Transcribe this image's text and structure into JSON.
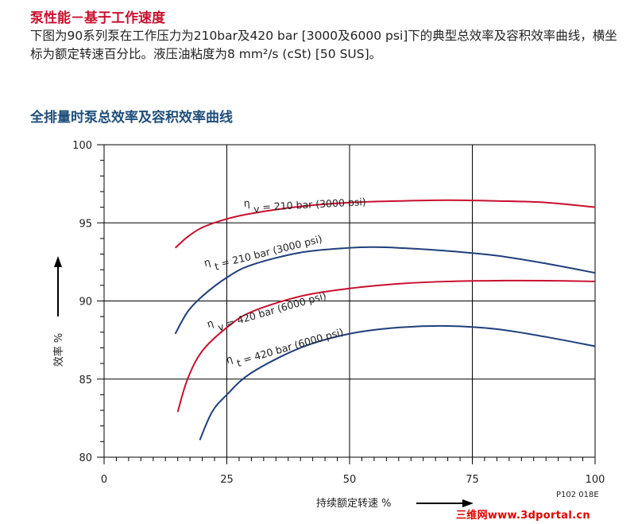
{
  "header": {
    "section_title": "泵性能－基于工作速度",
    "description": "下图为90系列泵在工作压力为210bar及420 bar [3000及6000 psi]下的典型总效率及容积效率曲线，横坐标为额定转速百分比。液压油粘度为8 mm²/s (cSt) [50 SUS]。",
    "chart_title": "全排量时泵总效率及容积效率曲线"
  },
  "figure_code": "P102 018E",
  "watermark": "三维网www.3dportal.cn",
  "colors": {
    "red": "#c8102e",
    "blue": "#1f3f7a",
    "grid": "#000000"
  },
  "chart_data": {
    "type": "line",
    "title": "全排量时泵总效率及容积效率曲线",
    "xlabel": "持续额定转速  %",
    "ylabel": "效率  %",
    "xlim": [
      0,
      100
    ],
    "ylim": [
      80,
      100
    ],
    "x_ticks": [
      0,
      25,
      50,
      75,
      100
    ],
    "y_ticks": [
      80,
      85,
      90,
      95,
      100
    ],
    "grid": true,
    "series": [
      {
        "name": "η v = 210 bar (3000 psi)",
        "name_parts": [
          "η",
          "v",
          "= 210 bar (3000 psi)"
        ],
        "color": "red",
        "x": [
          14.5,
          17,
          20,
          25,
          30,
          40,
          50,
          60,
          70,
          80,
          90,
          100
        ],
        "y": [
          93.4,
          94.1,
          94.7,
          95.25,
          95.6,
          96.05,
          96.3,
          96.4,
          96.45,
          96.4,
          96.3,
          96.0
        ]
      },
      {
        "name": "η t = 210 bar (3000 psi)",
        "name_parts": [
          "η",
          "t",
          "= 210 bar (3000 psi)"
        ],
        "color": "blue",
        "x": [
          14.5,
          17,
          20,
          25,
          30,
          40,
          50,
          55,
          60,
          70,
          80,
          90,
          100
        ],
        "y": [
          87.9,
          89.3,
          90.3,
          91.5,
          92.3,
          93.1,
          93.4,
          93.45,
          93.4,
          93.2,
          92.9,
          92.4,
          91.8
        ]
      },
      {
        "name": "η v = 420 bar (6000 psi)",
        "name_parts": [
          "η",
          "v",
          "= 420 bar (6000 psi)"
        ],
        "color": "red",
        "x": [
          15,
          17,
          20,
          25,
          30,
          40,
          50,
          60,
          70,
          80,
          90,
          100
        ],
        "y": [
          82.9,
          85.0,
          86.8,
          88.3,
          89.3,
          90.3,
          90.8,
          91.1,
          91.25,
          91.3,
          91.3,
          91.25
        ]
      },
      {
        "name": "η t = 420 bar (6000 psi)",
        "name_parts": [
          "η",
          "t",
          "= 420 bar (6000 psi)"
        ],
        "color": "blue",
        "x": [
          19.5,
          22,
          25,
          30,
          40,
          50,
          60,
          70,
          80,
          90,
          100
        ],
        "y": [
          81.1,
          82.9,
          84.0,
          85.4,
          87.0,
          87.9,
          88.3,
          88.4,
          88.2,
          87.7,
          87.1
        ]
      }
    ]
  }
}
